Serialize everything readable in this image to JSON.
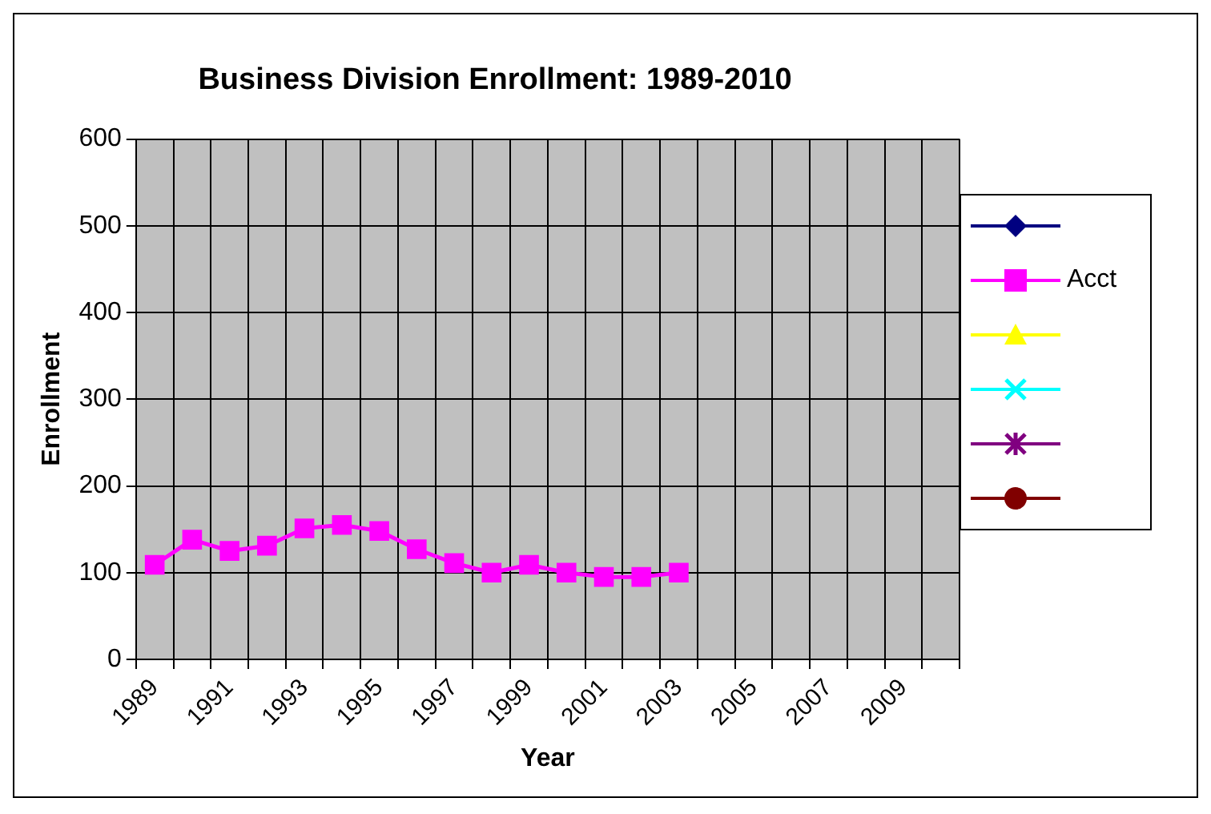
{
  "chart_data": {
    "type": "line",
    "title": "Business Division Enrollment: 1989-2010",
    "xlabel": "Year",
    "ylabel": "Enrollment",
    "categories": [
      "1989",
      null,
      "1991",
      null,
      "1993",
      null,
      "1995",
      null,
      "1997",
      null,
      "1999",
      null,
      "2001",
      null,
      "2003",
      null,
      "2005",
      null,
      "2007",
      null,
      "2009",
      null
    ],
    "series": [
      {
        "name": "Acct",
        "color": "#ff00ff",
        "marker": "square",
        "values": [
          109,
          138,
          125,
          131,
          151,
          155,
          148,
          127,
          111,
          100,
          109,
          100,
          95,
          95,
          100,
          null,
          null,
          null,
          null,
          null,
          null,
          null
        ]
      }
    ],
    "ylim": [
      0,
      600
    ],
    "yticks": [
      0,
      100,
      200,
      300,
      400,
      500,
      600
    ],
    "grid": true,
    "legend": "right"
  }
}
